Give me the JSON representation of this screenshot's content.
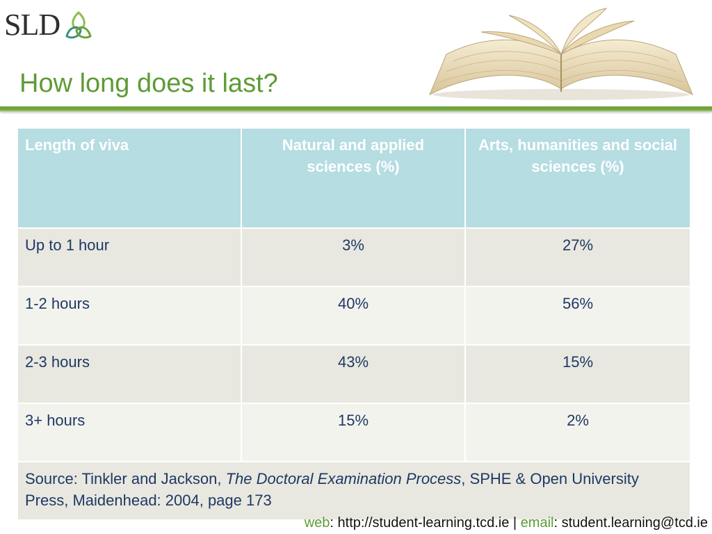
{
  "logo": {
    "text": "SLD"
  },
  "title": "How long does it last?",
  "colors": {
    "accent": "#5e9b35",
    "header_bg": "#b5dde2",
    "text": "#1f3864"
  },
  "table": {
    "headers": [
      "Length of viva",
      "Natural and applied sciences (%)",
      "Arts, humanities and social sciences (%)"
    ],
    "rows": [
      [
        "Up to 1 hour",
        "3%",
        "27%"
      ],
      [
        "1-2 hours",
        "40%",
        "56%"
      ],
      [
        "2-3 hours",
        "43%",
        "15%"
      ],
      [
        "3+ hours",
        "15%",
        "2%"
      ]
    ],
    "source": {
      "prefix": "Source: Tinkler and Jackson, ",
      "book_title": "The Doctoral Examination Process",
      "suffix": ", SPHE & Open University Press, Maidenhead: 2004, page 173"
    }
  },
  "footer": {
    "web_label": "web",
    "web_value": ": http://student-learning.tcd.ie | ",
    "email_label": "email",
    "email_value": ": student.learning@tcd.ie"
  }
}
